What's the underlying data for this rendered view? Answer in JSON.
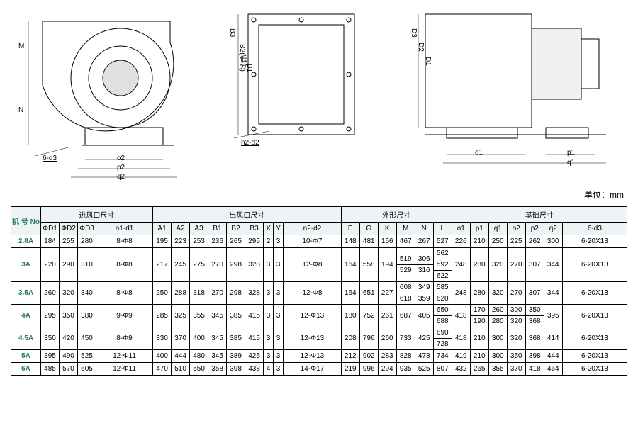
{
  "unit_label": "单位：mm",
  "diagram_labels": {
    "m": "M",
    "n": "N",
    "six_d3": "6-d3",
    "o2": "o2",
    "p2": "p2",
    "q2": "q2",
    "b3": "B3",
    "b2": "B2(低分)",
    "b1": "B1",
    "n2_d2": "n2-d2",
    "d3": "D3",
    "d2": "D2",
    "d1": "D1",
    "o1": "o1",
    "p1": "p1",
    "q1": "q1"
  },
  "header_groups": {
    "model": "机 号\nNo",
    "inlet": "进风口尺寸",
    "outlet": "出风口尺寸",
    "shape": "外形尺寸",
    "base": "基础尺寸"
  },
  "columns": {
    "d1": "ΦD1",
    "d2": "ΦD2",
    "d3": "ΦD3",
    "n1d1": "n1-d1",
    "a1": "A1",
    "a2": "A2",
    "a3": "A3",
    "b1": "B1",
    "b2": "B2",
    "b3": "B3",
    "x": "X",
    "y": "Y",
    "n2d2": "n2-d2",
    "e": "E",
    "g": "G",
    "k": "K",
    "m": "M",
    "nn": "N",
    "l": "L",
    "o1": "o1",
    "p1": "p1",
    "q1": "q1",
    "o2": "o2",
    "p2": "p2",
    "q2": "q2",
    "sixd3": "6-d3"
  },
  "rows": [
    {
      "no": "2.8A",
      "d1": "184",
      "d2": "255",
      "d3": "280",
      "n1d1": "8-Φ8",
      "a1": "195",
      "a2": "223",
      "a3": "253",
      "b1": "236",
      "b2": "265",
      "b3": "295",
      "x": "2",
      "y": "3",
      "n2d2": "10-Φ7",
      "e": "148",
      "g": "481",
      "k": "156",
      "m": [
        "467"
      ],
      "nn": [
        "267"
      ],
      "l": [
        "527"
      ],
      "o1": "226",
      "p1": [
        "210"
      ],
      "q1": [
        "250"
      ],
      "o2": [
        "225"
      ],
      "p2": [
        "262"
      ],
      "q2": "300",
      "sixd3": "6-20X13"
    },
    {
      "no": "3A",
      "d1": "220",
      "d2": "290",
      "d3": "310",
      "n1d1": "8-Φ8",
      "a1": "217",
      "a2": "245",
      "a3": "275",
      "b1": "270",
      "b2": "298",
      "b3": "328",
      "x": "3",
      "y": "3",
      "n2d2": "12-Φ8",
      "e": "164",
      "g": "558",
      "k": "194",
      "m": [
        "519",
        "529"
      ],
      "nn": [
        "306",
        "316"
      ],
      "l": [
        "562",
        "592",
        "622"
      ],
      "o1": "248",
      "p1": [
        "280"
      ],
      "q1": [
        "320"
      ],
      "o2": [
        "270"
      ],
      "p2": [
        "307"
      ],
      "q2": "344",
      "sixd3": "6-20X13"
    },
    {
      "no": "3.5A",
      "d1": "260",
      "d2": "320",
      "d3": "340",
      "n1d1": "8-Φ8",
      "a1": "250",
      "a2": "288",
      "a3": "318",
      "b1": "270",
      "b2": "298",
      "b3": "328",
      "x": "3",
      "y": "3",
      "n2d2": "12-Φ8",
      "e": "164",
      "g": "651",
      "k": "227",
      "m": [
        "608",
        "618"
      ],
      "nn": [
        "349",
        "359"
      ],
      "l": [
        "585",
        "620"
      ],
      "o1": "248",
      "p1": [
        "280"
      ],
      "q1": [
        "320"
      ],
      "o2": [
        "270"
      ],
      "p2": [
        "307"
      ],
      "q2": "344",
      "sixd3": "6-20X13"
    },
    {
      "no": "4A",
      "d1": "295",
      "d2": "350",
      "d3": "380",
      "n1d1": "9-Φ9",
      "a1": "285",
      "a2": "325",
      "a3": "355",
      "b1": "345",
      "b2": "385",
      "b3": "415",
      "x": "3",
      "y": "3",
      "n2d2": "12-Φ13",
      "e": "180",
      "g": "752",
      "k": "261",
      "m": [
        "687"
      ],
      "nn": [
        "405"
      ],
      "l": [
        "650",
        "688"
      ],
      "o1": "418",
      "p1": [
        "170",
        "190"
      ],
      "q1": [
        "260",
        "280"
      ],
      "o2": [
        "300",
        "320"
      ],
      "p2": [
        "350",
        "368"
      ],
      "q2": "395",
      "sixd3": "6-20X13"
    },
    {
      "no": "4.5A",
      "d1": "350",
      "d2": "420",
      "d3": "450",
      "n1d1": "8-Φ9",
      "a1": "330",
      "a2": "370",
      "a3": "400",
      "b1": "345",
      "b2": "385",
      "b3": "415",
      "x": "3",
      "y": "3",
      "n2d2": "12-Φ13",
      "e": "208",
      "g": "796",
      "k": "260",
      "m": [
        "733"
      ],
      "nn": [
        "425"
      ],
      "l": [
        "690",
        "728"
      ],
      "o1": "418",
      "p1": [
        "210"
      ],
      "q1": [
        "300"
      ],
      "o2": [
        "320"
      ],
      "p2": [
        "368"
      ],
      "q2": "414",
      "sixd3": "6-20X13"
    },
    {
      "no": "5A",
      "d1": "395",
      "d2": "490",
      "d3": "525",
      "n1d1": "12-Φ11",
      "a1": "400",
      "a2": "444",
      "a3": "480",
      "b1": "345",
      "b2": "389",
      "b3": "425",
      "x": "3",
      "y": "3",
      "n2d2": "12-Φ13",
      "e": "212",
      "g": "902",
      "k": "283",
      "m": [
        "828"
      ],
      "nn": [
        "478"
      ],
      "l": [
        "734"
      ],
      "o1": "419",
      "p1": [
        "210"
      ],
      "q1": [
        "300"
      ],
      "o2": [
        "350"
      ],
      "p2": [
        "398"
      ],
      "q2": "444",
      "sixd3": "6-20X13"
    },
    {
      "no": "6A",
      "d1": "485",
      "d2": "570",
      "d3": "605",
      "n1d1": "12-Φ11",
      "a1": "470",
      "a2": "510",
      "a3": "550",
      "b1": "358",
      "b2": "398",
      "b3": "438",
      "x": "4",
      "y": "3",
      "n2d2": "14-Φ17",
      "e": "219",
      "g": "996",
      "k": "294",
      "m": [
        "935"
      ],
      "nn": [
        "525"
      ],
      "l": [
        "807"
      ],
      "o1": "432",
      "p1": [
        "265"
      ],
      "q1": [
        "355"
      ],
      "o2": [
        "370"
      ],
      "p2": [
        "418"
      ],
      "q2": "464",
      "sixd3": "6-20X13"
    }
  ]
}
